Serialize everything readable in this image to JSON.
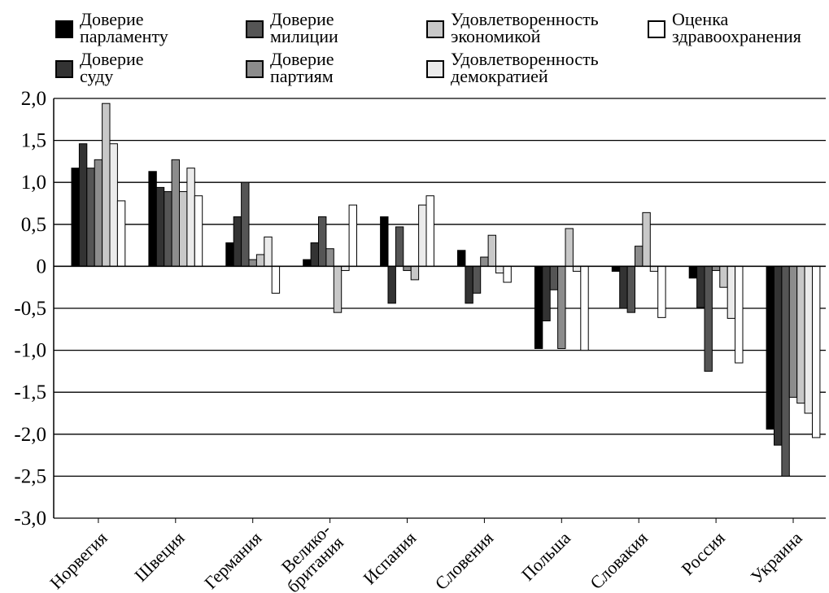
{
  "chart_data": {
    "type": "bar",
    "categories": [
      "Норвегия",
      "Швеция",
      "Германия",
      "Велико-\nбритания",
      "Испания",
      "Словения",
      "Польша",
      "Словакия",
      "Россия",
      "Украина"
    ],
    "series": [
      {
        "name": "Доверие\nпарламенту",
        "color": "#000000",
        "values": [
          1.17,
          1.13,
          0.28,
          0.08,
          0.59,
          0.19,
          -0.98,
          -0.06,
          -0.14,
          -1.94
        ]
      },
      {
        "name": "Доверие\nсуду",
        "color": "#333333",
        "values": [
          1.46,
          0.94,
          0.59,
          0.28,
          -0.44,
          -0.44,
          -0.65,
          -0.5,
          -0.49,
          -2.13
        ]
      },
      {
        "name": "Доверие\nмилиции",
        "color": "#555555",
        "values": [
          1.17,
          0.89,
          1.0,
          0.59,
          0.47,
          -0.32,
          -0.28,
          -0.55,
          -1.25,
          -2.5
        ]
      },
      {
        "name": "Доверие\nпартиям",
        "color": "#8c8c8c",
        "values": [
          1.27,
          1.27,
          0.08,
          0.21,
          -0.05,
          0.11,
          -0.98,
          0.24,
          -0.05,
          -1.56
        ]
      },
      {
        "name": "Удовлетворенность\nэкономикой",
        "color": "#c8c8c8",
        "values": [
          1.94,
          0.89,
          0.14,
          -0.55,
          -0.16,
          0.37,
          0.45,
          0.64,
          -0.25,
          -1.63
        ]
      },
      {
        "name": "Удовлетворенность\nдемократией",
        "color": "#ebebeb",
        "values": [
          1.46,
          1.17,
          0.35,
          -0.05,
          0.73,
          -0.08,
          -0.06,
          -0.06,
          -0.62,
          -1.75
        ]
      },
      {
        "name": "Оценка\nздравоохранения",
        "color": "#ffffff",
        "values": [
          0.78,
          0.84,
          -0.32,
          0.73,
          0.84,
          -0.19,
          -1.0,
          -0.61,
          -1.15,
          -2.04
        ]
      }
    ],
    "ylim": [
      -3.0,
      2.0
    ],
    "yticks": [
      2.0,
      1.5,
      1.0,
      0.5,
      0,
      -0.5,
      -1.0,
      -1.5,
      -2.0,
      -2.5,
      -3.0
    ],
    "ytick_labels": [
      "2,0",
      "1,5",
      "1,0",
      "0,5",
      "0",
      "-0,5",
      "-1,0",
      "-1,5",
      "-2,0",
      "-2,5",
      "-3,0"
    ],
    "grid": true,
    "legend_position": "top",
    "title": "",
    "xlabel": "",
    "ylabel": ""
  }
}
